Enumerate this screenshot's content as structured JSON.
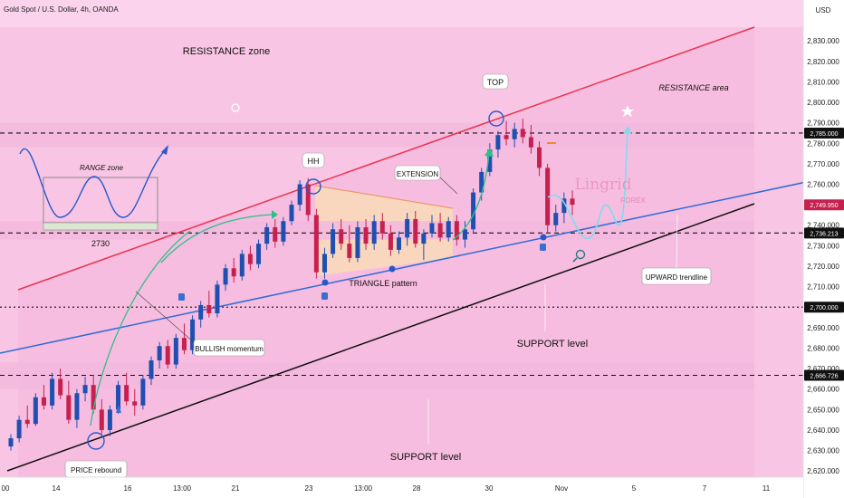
{
  "header": {
    "symbol": "Gold Spot / U.S. Dollar, 4h, OANDA",
    "currency": "USD"
  },
  "colors": {
    "background": "#fbd3ec",
    "zone": "#f3b9de",
    "bull": "#1f4fb0",
    "bear": "#c6214e",
    "resistance_line": "#e8344e",
    "support_line": "#111111",
    "trend_line": "#2d6bd6",
    "arrow": "#2fbf8a",
    "forecast": "#7fdcea"
  },
  "watermark": {
    "name": "Lingrid",
    "sub": "FOREX"
  },
  "chart_data": {
    "type": "candlestick",
    "title": "Gold Spot / U.S. Dollar, 4h, OANDA",
    "yaxis": {
      "unit": "USD",
      "range": [
        2617,
        2842
      ],
      "ticks": [
        2620,
        2630,
        2640,
        2650,
        2660,
        2670,
        2680,
        2690,
        2700,
        2710,
        2720,
        2730,
        2740,
        2750,
        2760,
        2770,
        2780,
        2790,
        2800,
        2810,
        2820,
        2830
      ],
      "tick_labels": [
        "2,620.000",
        "2,630.000",
        "2,640.000",
        "2,650.000",
        "2,660.000",
        "2,670.000",
        "2,680.000",
        "2,690.000",
        "2,700.000",
        "2,710.000",
        "2,720.000",
        "2,730.000",
        "2,740.000",
        "2,750.000",
        "2,760.000",
        "2,770.000",
        "2,780.000",
        "2,790.000",
        "2,800.000",
        "2,810.000",
        "2,820.000",
        "2,830.000"
      ]
    },
    "xaxis": {
      "tick_labels": [
        "00",
        "14",
        "16",
        "13:00",
        "21",
        "23",
        "13:00",
        "28",
        "30",
        "Nov",
        "5",
        "7",
        "11"
      ]
    },
    "price_tags": [
      {
        "label": "2,785.000",
        "value": 2785,
        "dark": true
      },
      {
        "label": "2,749.950",
        "value": 2749.95,
        "dark": false
      },
      {
        "label": "2,736.213",
        "value": 2736.213,
        "dark": true
      },
      {
        "label": "2,700.000",
        "value": 2700,
        "dark": true
      },
      {
        "label": "2,666.726",
        "value": 2666.726,
        "dark": true
      }
    ],
    "levels": [
      {
        "value": 2785,
        "style": "dashed"
      },
      {
        "value": 2736.213,
        "style": "dashed"
      },
      {
        "value": 2700,
        "style": "dotted"
      },
      {
        "value": 2666.726,
        "style": "dashed"
      }
    ],
    "zones": [
      {
        "from": 2778,
        "to": 2790
      },
      {
        "from": 2733,
        "to": 2742
      },
      {
        "from": 2660,
        "to": 2673
      }
    ],
    "candles": [
      [
        2632,
        2638,
        2630,
        2636
      ],
      [
        2636,
        2647,
        2634,
        2645
      ],
      [
        2645,
        2652,
        2641,
        2643
      ],
      [
        2643,
        2658,
        2642,
        2656
      ],
      [
        2656,
        2662,
        2650,
        2652
      ],
      [
        2652,
        2668,
        2650,
        2665
      ],
      [
        2665,
        2670,
        2655,
        2657
      ],
      [
        2657,
        2664,
        2643,
        2645
      ],
      [
        2645,
        2660,
        2641,
        2658
      ],
      [
        2658,
        2666,
        2654,
        2662
      ],
      [
        2662,
        2667,
        2648,
        2650
      ],
      [
        2650,
        2655,
        2638,
        2640
      ],
      [
        2640,
        2652,
        2637,
        2650
      ],
      [
        2650,
        2664,
        2648,
        2662
      ],
      [
        2662,
        2668,
        2652,
        2654
      ],
      [
        2654,
        2660,
        2647,
        2652
      ],
      [
        2652,
        2667,
        2650,
        2665
      ],
      [
        2665,
        2676,
        2662,
        2674
      ],
      [
        2674,
        2683,
        2670,
        2681
      ],
      [
        2681,
        2684,
        2670,
        2672
      ],
      [
        2672,
        2687,
        2670,
        2685
      ],
      [
        2685,
        2692,
        2677,
        2679
      ],
      [
        2679,
        2696,
        2677,
        2694
      ],
      [
        2694,
        2703,
        2690,
        2701
      ],
      [
        2701,
        2708,
        2695,
        2697
      ],
      [
        2697,
        2713,
        2695,
        2711
      ],
      [
        2711,
        2721,
        2708,
        2719
      ],
      [
        2719,
        2724,
        2712,
        2715
      ],
      [
        2715,
        2728,
        2713,
        2726
      ],
      [
        2726,
        2730,
        2718,
        2721
      ],
      [
        2721,
        2733,
        2719,
        2731
      ],
      [
        2731,
        2741,
        2728,
        2739
      ],
      [
        2739,
        2743,
        2729,
        2732
      ],
      [
        2732,
        2744,
        2730,
        2742
      ],
      [
        2742,
        2752,
        2740,
        2750
      ],
      [
        2750,
        2762,
        2747,
        2760
      ],
      [
        2760,
        2763,
        2742,
        2745
      ],
      [
        2745,
        2748,
        2714,
        2717
      ],
      [
        2717,
        2729,
        2714,
        2726
      ],
      [
        2726,
        2741,
        2724,
        2738
      ],
      [
        2738,
        2743,
        2728,
        2731
      ],
      [
        2731,
        2740,
        2722,
        2724
      ],
      [
        2724,
        2742,
        2722,
        2739
      ],
      [
        2739,
        2743,
        2728,
        2731
      ],
      [
        2731,
        2745,
        2728,
        2742
      ],
      [
        2742,
        2746,
        2733,
        2736
      ],
      [
        2736,
        2740,
        2725,
        2728
      ],
      [
        2728,
        2737,
        2726,
        2734
      ],
      [
        2734,
        2746,
        2730,
        2743
      ],
      [
        2743,
        2747,
        2729,
        2731
      ],
      [
        2731,
        2738,
        2723,
        2736
      ],
      [
        2736,
        2745,
        2734,
        2741
      ],
      [
        2741,
        2746,
        2732,
        2734
      ],
      [
        2734,
        2744,
        2732,
        2742
      ],
      [
        2742,
        2745,
        2730,
        2733
      ],
      [
        2733,
        2742,
        2729,
        2738
      ],
      [
        2738,
        2758,
        2736,
        2756
      ],
      [
        2756,
        2768,
        2752,
        2766
      ],
      [
        2766,
        2780,
        2764,
        2777
      ],
      [
        2777,
        2786,
        2773,
        2784
      ],
      [
        2784,
        2791,
        2779,
        2782
      ],
      [
        2782,
        2790,
        2778,
        2787
      ],
      [
        2787,
        2792,
        2780,
        2783
      ],
      [
        2783,
        2789,
        2775,
        2778
      ],
      [
        2778,
        2781,
        2764,
        2768
      ],
      [
        2768,
        2770,
        2736,
        2740
      ],
      [
        2740,
        2750,
        2737,
        2746
      ],
      [
        2746,
        2756,
        2741,
        2753
      ],
      [
        2753,
        2757,
        2745,
        2750
      ]
    ],
    "annotations": [
      {
        "text": "RESISTANCE zone",
        "price": 2822
      },
      {
        "text": "RESISTANCE area",
        "price": 2803
      },
      {
        "text": "TOP",
        "price": 2800
      },
      {
        "text": "HH",
        "price": 2768
      },
      {
        "text": "EXTENSION",
        "price": 2762
      },
      {
        "text": "RANGE zone",
        "price": 2763
      },
      {
        "text": "2730",
        "price": 2728
      },
      {
        "text": "TRIANGLE pattern",
        "price": 2713
      },
      {
        "text": "UPWARD trendline",
        "price": 2714
      },
      {
        "text": "BULLISH momentum",
        "price": 2683
      },
      {
        "text": "SUPPORT level",
        "price": 2686
      },
      {
        "text": "SUPPORT level",
        "price": 2642
      },
      {
        "text": "PRICE rebound",
        "price": 2630
      }
    ]
  }
}
